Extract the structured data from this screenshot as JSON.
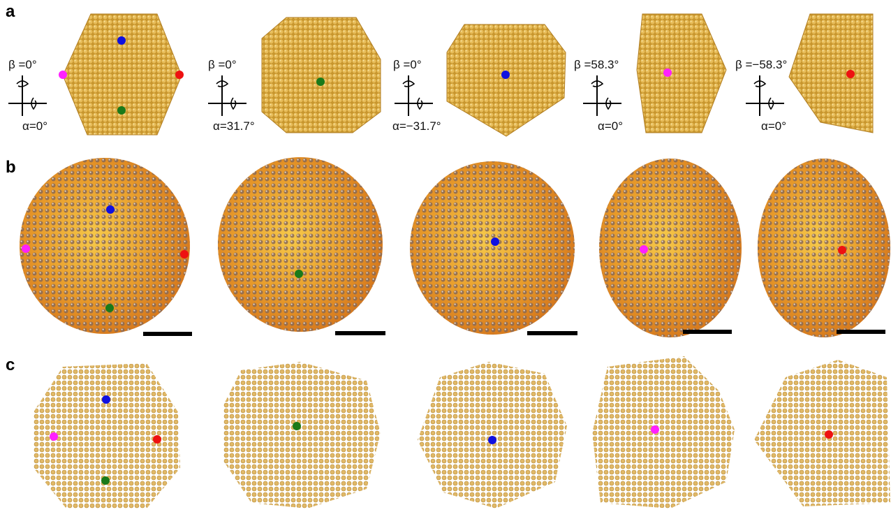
{
  "panels": [
    {
      "label": "a",
      "views": [
        {
          "beta": "β =0°",
          "alpha": "α=0°"
        },
        {
          "beta": "β =0°",
          "alpha": "α=31.7°"
        },
        {
          "beta": "β =0°",
          "alpha": "α=−31.7°"
        },
        {
          "beta": "β =58.3°",
          "alpha": "α=0°"
        },
        {
          "beta": "β =−58.3°",
          "alpha": "α=0°"
        }
      ]
    },
    {
      "label": "b"
    },
    {
      "label": "c"
    }
  ]
}
